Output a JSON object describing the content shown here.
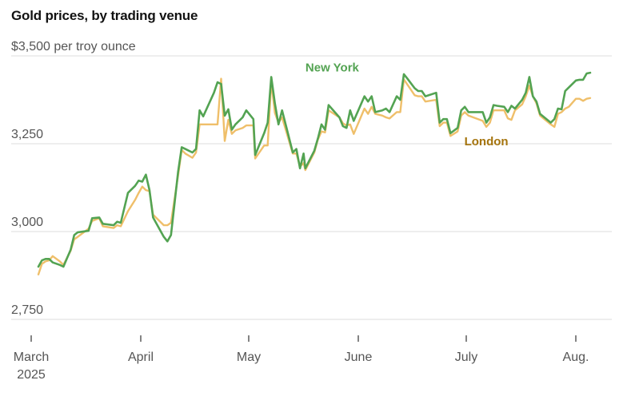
{
  "chart_data": {
    "type": "line",
    "title": "Gold prices, by trading venue",
    "ylabel": "per troy ounce",
    "ylim": [
      2700,
      3520
    ],
    "y_ticks": [
      {
        "value": 3500,
        "label": "$3,500 per troy ounce"
      },
      {
        "value": 3250,
        "label": "3,250"
      },
      {
        "value": 3000,
        "label": "3,000"
      },
      {
        "value": 2750,
        "label": "2,750"
      }
    ],
    "xlim": [
      0,
      158
    ],
    "x_ticks": [
      {
        "value": 0,
        "label": "March",
        "sub": "2025"
      },
      {
        "value": 31,
        "label": "April",
        "sub": ""
      },
      {
        "value": 61,
        "label": "May",
        "sub": ""
      },
      {
        "value": 92,
        "label": "June",
        "sub": ""
      },
      {
        "value": 122,
        "label": "July",
        "sub": ""
      },
      {
        "value": 153,
        "label": "Aug.",
        "sub": ""
      }
    ],
    "series": [
      {
        "name": "New York",
        "color": "#53a352",
        "label_color": "#53a352",
        "label_at": [
          84,
          3456
        ],
        "points": [
          [
            2,
            2900
          ],
          [
            3,
            2918
          ],
          [
            4,
            2922
          ],
          [
            5,
            2922
          ],
          [
            6,
            2912
          ],
          [
            8,
            2905
          ],
          [
            9,
            2900
          ],
          [
            11,
            2948
          ],
          [
            12,
            2990
          ],
          [
            13,
            2998
          ],
          [
            16,
            3002
          ],
          [
            17,
            3038
          ],
          [
            19,
            3040
          ],
          [
            20,
            3022
          ],
          [
            23,
            3018
          ],
          [
            24,
            3028
          ],
          [
            25,
            3025
          ],
          [
            27,
            3110
          ],
          [
            29,
            3130
          ],
          [
            30,
            3145
          ],
          [
            31,
            3142
          ],
          [
            32,
            3162
          ],
          [
            33,
            3118
          ],
          [
            34,
            3040
          ],
          [
            37,
            2985
          ],
          [
            38,
            2972
          ],
          [
            39,
            2990
          ],
          [
            41,
            3170
          ],
          [
            42,
            3240
          ],
          [
            43,
            3235
          ],
          [
            45,
            3225
          ],
          [
            46,
            3235
          ],
          [
            47,
            3345
          ],
          [
            48,
            3328
          ],
          [
            51,
            3395
          ],
          [
            52,
            3425
          ],
          [
            53,
            3420
          ],
          [
            54,
            3330
          ],
          [
            55,
            3348
          ],
          [
            56,
            3290
          ],
          [
            57,
            3305
          ],
          [
            59,
            3325
          ],
          [
            60,
            3345
          ],
          [
            62,
            3320
          ],
          [
            62.5,
            3218
          ],
          [
            65,
            3280
          ],
          [
            66,
            3310
          ],
          [
            67,
            3440
          ],
          [
            68,
            3365
          ],
          [
            69,
            3305
          ],
          [
            70,
            3345
          ],
          [
            73,
            3225
          ],
          [
            74,
            3235
          ],
          [
            75,
            3180
          ],
          [
            76,
            3222
          ],
          [
            76.5,
            3180
          ],
          [
            79,
            3230
          ],
          [
            80,
            3265
          ],
          [
            81,
            3305
          ],
          [
            82,
            3290
          ],
          [
            83,
            3360
          ],
          [
            86,
            3325
          ],
          [
            87,
            3300
          ],
          [
            88,
            3295
          ],
          [
            89,
            3345
          ],
          [
            90,
            3315
          ],
          [
            93,
            3385
          ],
          [
            94,
            3370
          ],
          [
            95,
            3385
          ],
          [
            96,
            3340
          ],
          [
            98,
            3345
          ],
          [
            99,
            3350
          ],
          [
            100,
            3340
          ],
          [
            102,
            3385
          ],
          [
            103,
            3375
          ],
          [
            104,
            3448
          ],
          [
            105,
            3435
          ],
          [
            107,
            3408
          ],
          [
            108,
            3400
          ],
          [
            109,
            3400
          ],
          [
            110,
            3385
          ],
          [
            113,
            3395
          ],
          [
            114,
            3310
          ],
          [
            115,
            3320
          ],
          [
            116,
            3320
          ],
          [
            117,
            3280
          ],
          [
            119,
            3295
          ],
          [
            120,
            3345
          ],
          [
            121,
            3355
          ],
          [
            122,
            3340
          ],
          [
            126,
            3340
          ],
          [
            127,
            3310
          ],
          [
            128,
            3325
          ],
          [
            129,
            3360
          ],
          [
            130,
            3358
          ],
          [
            132,
            3355
          ],
          [
            133,
            3340
          ],
          [
            134,
            3358
          ],
          [
            135,
            3350
          ],
          [
            137,
            3375
          ],
          [
            138,
            3395
          ],
          [
            139,
            3440
          ],
          [
            140,
            3385
          ],
          [
            141,
            3370
          ],
          [
            142,
            3335
          ],
          [
            145,
            3310
          ],
          [
            146,
            3320
          ],
          [
            147,
            3350
          ],
          [
            148,
            3348
          ],
          [
            149,
            3400
          ],
          [
            150,
            3410
          ],
          [
            152,
            3430
          ],
          [
            153,
            3432
          ],
          [
            154,
            3432
          ],
          [
            155,
            3450
          ],
          [
            156,
            3452
          ]
        ]
      },
      {
        "name": "London",
        "color": "#efbf6a",
        "label_color": "#a5740d",
        "label_at": [
          127,
          3245
        ],
        "points": [
          [
            2,
            2878
          ],
          [
            3,
            2908
          ],
          [
            4,
            2915
          ],
          [
            5,
            2918
          ],
          [
            6,
            2930
          ],
          [
            8,
            2915
          ],
          [
            9,
            2905
          ],
          [
            11,
            2945
          ],
          [
            12,
            2978
          ],
          [
            13,
            2985
          ],
          [
            16,
            3008
          ],
          [
            17,
            3030
          ],
          [
            19,
            3038
          ],
          [
            20,
            3015
          ],
          [
            23,
            3010
          ],
          [
            24,
            3018
          ],
          [
            25,
            3015
          ],
          [
            27,
            3058
          ],
          [
            29,
            3090
          ],
          [
            30,
            3110
          ],
          [
            31,
            3128
          ],
          [
            32,
            3118
          ],
          [
            33,
            3115
          ],
          [
            34,
            3048
          ],
          [
            37,
            3018
          ],
          [
            38,
            3018
          ],
          [
            39,
            3025
          ],
          [
            41,
            3160
          ],
          [
            42,
            3232
          ],
          [
            43,
            3222
          ],
          [
            45,
            3210
          ],
          [
            46,
            3225
          ],
          [
            47,
            3305
          ],
          [
            48,
            3305
          ],
          [
            51,
            3305
          ],
          [
            52,
            3305
          ],
          [
            53,
            3435
          ],
          [
            54,
            3258
          ],
          [
            55,
            3318
          ],
          [
            56,
            3278
          ],
          [
            57,
            3288
          ],
          [
            59,
            3295
          ],
          [
            60,
            3302
          ],
          [
            62,
            3302
          ],
          [
            62.5,
            3208
          ],
          [
            65,
            3245
          ],
          [
            66,
            3245
          ],
          [
            67,
            3428
          ],
          [
            68,
            3338
          ],
          [
            69,
            3310
          ],
          [
            70,
            3325
          ],
          [
            73,
            3222
          ],
          [
            74,
            3222
          ],
          [
            75,
            3185
          ],
          [
            76,
            3195
          ],
          [
            76.5,
            3175
          ],
          [
            79,
            3225
          ],
          [
            80,
            3262
          ],
          [
            81,
            3285
          ],
          [
            82,
            3282
          ],
          [
            83,
            3345
          ],
          [
            86,
            3325
          ],
          [
            87,
            3308
          ],
          [
            88,
            3302
          ],
          [
            89,
            3305
          ],
          [
            90,
            3278
          ],
          [
            93,
            3350
          ],
          [
            94,
            3335
          ],
          [
            95,
            3355
          ],
          [
            96,
            3335
          ],
          [
            98,
            3330
          ],
          [
            99,
            3325
          ],
          [
            100,
            3322
          ],
          [
            102,
            3340
          ],
          [
            103,
            3340
          ],
          [
            104,
            3433
          ],
          [
            105,
            3418
          ],
          [
            107,
            3388
          ],
          [
            108,
            3385
          ],
          [
            109,
            3385
          ],
          [
            110,
            3370
          ],
          [
            113,
            3375
          ],
          [
            114,
            3300
          ],
          [
            115,
            3310
          ],
          [
            116,
            3310
          ],
          [
            117,
            3272
          ],
          [
            119,
            3285
          ],
          [
            120,
            3330
          ],
          [
            121,
            3340
          ],
          [
            122,
            3330
          ],
          [
            126,
            3315
          ],
          [
            127,
            3298
          ],
          [
            128,
            3310
          ],
          [
            129,
            3345
          ],
          [
            130,
            3345
          ],
          [
            132,
            3345
          ],
          [
            133,
            3322
          ],
          [
            134,
            3318
          ],
          [
            135,
            3345
          ],
          [
            137,
            3362
          ],
          [
            138,
            3385
          ],
          [
            139,
            3415
          ],
          [
            140,
            3385
          ],
          [
            141,
            3365
          ],
          [
            142,
            3330
          ],
          [
            145,
            3305
          ],
          [
            146,
            3298
          ],
          [
            147,
            3335
          ],
          [
            148,
            3340
          ],
          [
            149,
            3350
          ],
          [
            150,
            3355
          ],
          [
            152,
            3378
          ],
          [
            153,
            3378
          ],
          [
            154,
            3372
          ],
          [
            155,
            3378
          ],
          [
            156,
            3380
          ]
        ]
      }
    ]
  }
}
